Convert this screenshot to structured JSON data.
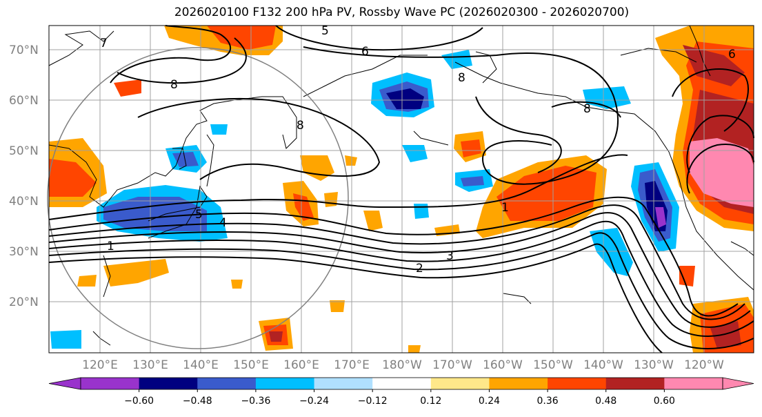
{
  "title": "2026020100 F132 200 hPa PV, Rossby Wave PC (2026020300 - 2026020700)",
  "lat_labels": [
    "70°N",
    "60°N",
    "50°N",
    "40°N",
    "30°N",
    "20°N"
  ],
  "lon_labels": [
    "120°E",
    "130°E",
    "140°E",
    "150°E",
    "160°E",
    "170°E",
    "180°W",
    "170°W",
    "160°W",
    "150°W",
    "140°W",
    "130°W",
    "120°W"
  ],
  "colorbar": {
    "ticks": [
      "−0.60",
      "−0.48",
      "−0.36",
      "−0.24",
      "−0.12",
      "0.12",
      "0.24",
      "0.36",
      "0.48",
      "0.60"
    ],
    "colors": [
      "#9933cc",
      "#000080",
      "#3a5bcc",
      "#00bfff",
      "#b0e0ff",
      "#ffffff",
      "#ffe88a",
      "#ffa500",
      "#ff4500",
      "#b22222",
      "#ff88b0",
      "#ff88b0"
    ]
  },
  "contour_labels": [
    "5",
    "6",
    "7",
    "8",
    "8",
    "8",
    "8",
    "5",
    "4",
    "1",
    "1",
    "2",
    "3",
    "6"
  ],
  "legend_colors": {
    "neg_deep": "#000080",
    "neg_mid": "#3a5bcc",
    "neg_light": "#00bfff",
    "neg_pale": "#b0e0ff",
    "pos_pale": "#ffe88a",
    "pos_light": "#ffa500",
    "pos_mid": "#ff4500",
    "pos_deep": "#b22222",
    "pos_max": "#ff88b0",
    "neg_max": "#9933cc"
  }
}
